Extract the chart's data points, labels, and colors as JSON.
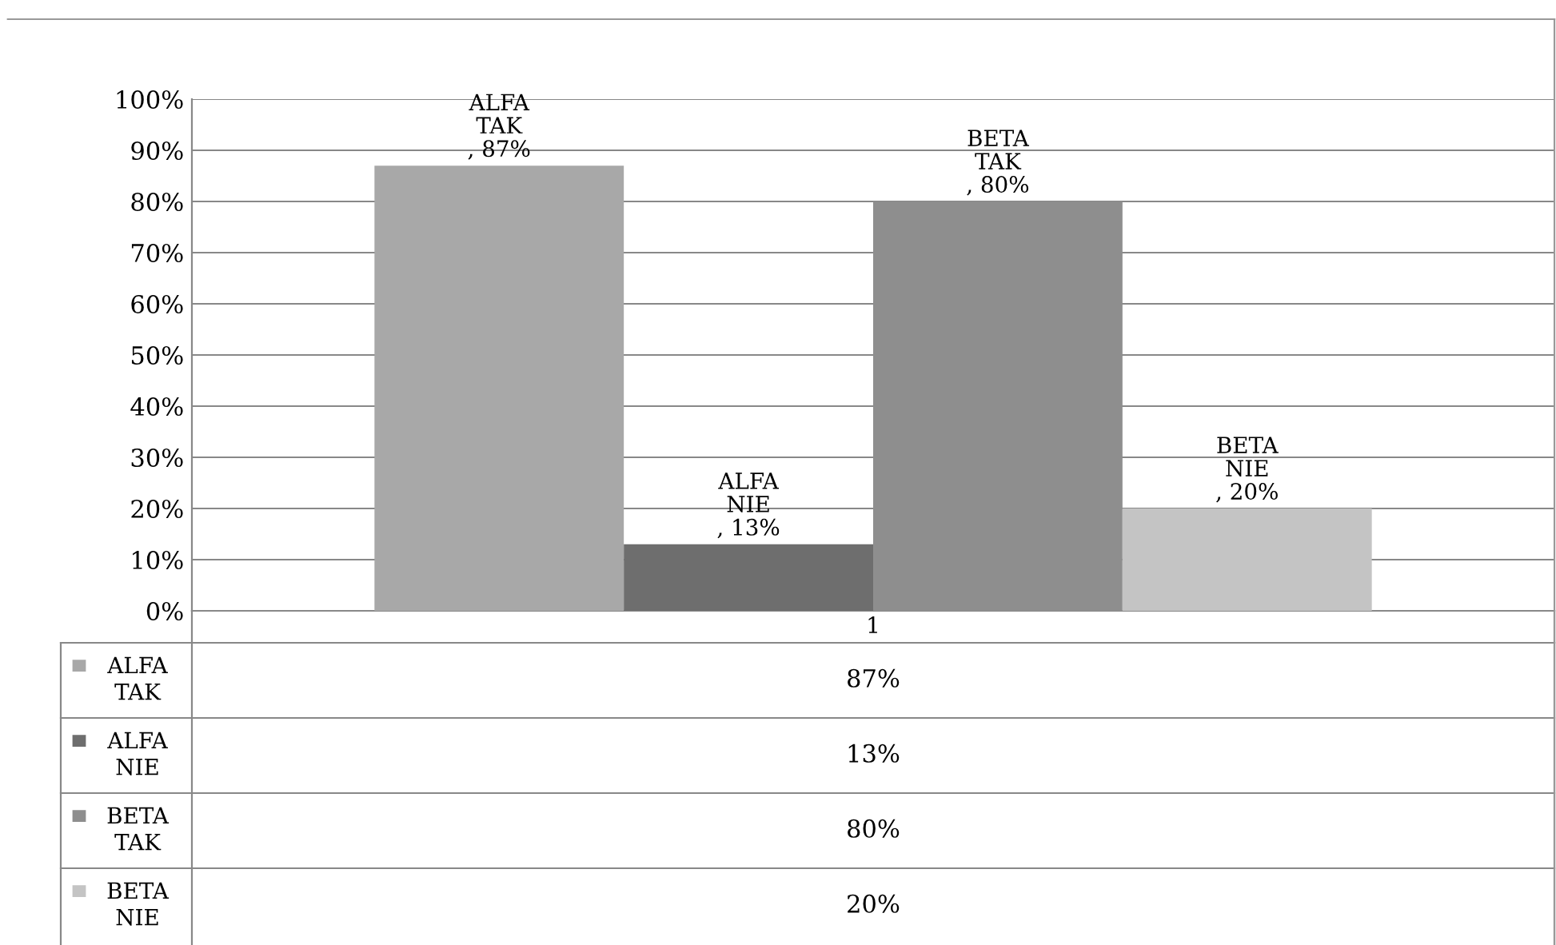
{
  "chart_data": {
    "type": "bar",
    "categories": [
      "1"
    ],
    "series": [
      {
        "name": "ALFA TAK",
        "color": "#a8a8a8",
        "values": [
          87
        ],
        "value_labels": [
          "ALFA\nTAK\n, 87%"
        ]
      },
      {
        "name": "ALFA NIE",
        "color": "#6e6e6e",
        "values": [
          13
        ],
        "value_labels": [
          "ALFA\nNIE\n, 13%"
        ]
      },
      {
        "name": "BETA TAK",
        "color": "#8e8e8e",
        "values": [
          80
        ],
        "value_labels": [
          "BETA\nTAK\n, 80%"
        ]
      },
      {
        "name": "BETA NIE",
        "color": "#c4c4c4",
        "values": [
          20
        ],
        "value_labels": [
          "BETA\nNIE\n, 20%"
        ]
      }
    ],
    "annotations": [
      "87%",
      "13%",
      "80%",
      "20%"
    ],
    "ylim": [
      0,
      100
    ],
    "yticks": [
      {
        "value": 0,
        "label": "0%"
      },
      {
        "value": 10,
        "label": "10%"
      },
      {
        "value": 20,
        "label": "20%"
      },
      {
        "value": 30,
        "label": "30%"
      },
      {
        "value": 40,
        "label": "40%"
      },
      {
        "value": 50,
        "label": "50%"
      },
      {
        "value": 60,
        "label": "60%"
      },
      {
        "value": 70,
        "label": "70%"
      },
      {
        "value": 80,
        "label": "80%"
      },
      {
        "value": 90,
        "label": "90%"
      },
      {
        "value": 100,
        "label": "100%"
      }
    ],
    "grid": "y",
    "legend": "bottom"
  }
}
